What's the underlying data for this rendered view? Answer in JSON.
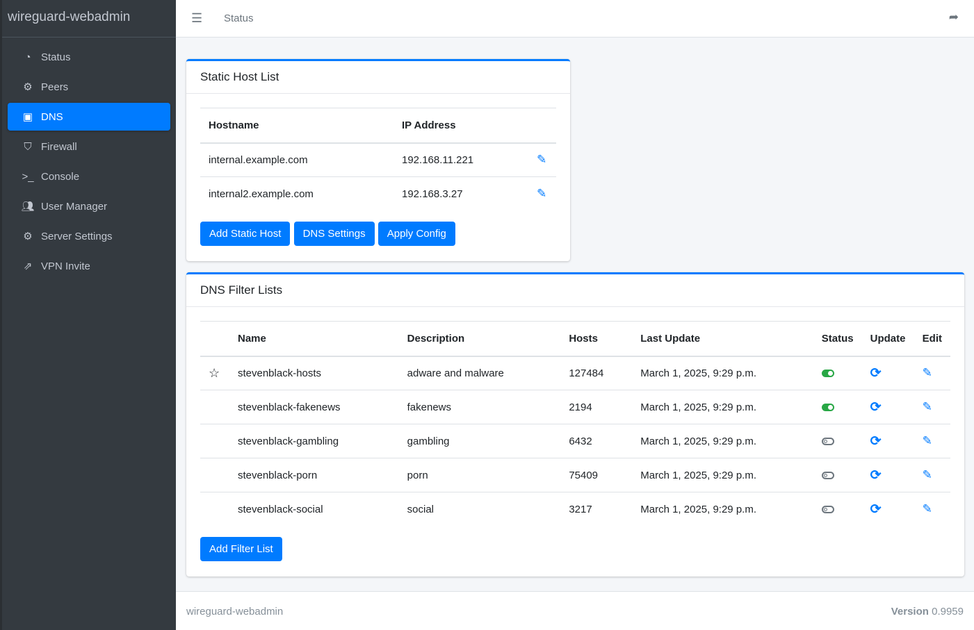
{
  "brand": "wireguard-webadmin",
  "sidebar": {
    "items": [
      {
        "label": "Status",
        "icon": "tachometer-icon"
      },
      {
        "label": "Peers",
        "icon": "users-cog-icon"
      },
      {
        "label": "DNS",
        "icon": "address-book-icon",
        "active": true
      },
      {
        "label": "Firewall",
        "icon": "shield-icon"
      },
      {
        "label": "Console",
        "icon": "terminal-icon"
      },
      {
        "label": "User Manager",
        "icon": "users-icon"
      },
      {
        "label": "Server Settings",
        "icon": "cogs-icon"
      },
      {
        "label": "VPN Invite",
        "icon": "share-icon"
      }
    ]
  },
  "header": {
    "title": "Status"
  },
  "static_hosts": {
    "title": "Static Host List",
    "columns": [
      "Hostname",
      "IP Address"
    ],
    "rows": [
      {
        "hostname": "internal.example.com",
        "ip": "192.168.11.221"
      },
      {
        "hostname": "internal2.example.com",
        "ip": "192.168.3.27"
      }
    ],
    "buttons": {
      "add": "Add Static Host",
      "settings": "DNS Settings",
      "apply": "Apply Config"
    }
  },
  "filter_lists": {
    "title": "DNS Filter Lists",
    "columns": [
      "Name",
      "Description",
      "Hosts",
      "Last Update",
      "Status",
      "Update",
      "Edit"
    ],
    "rows": [
      {
        "name": "stevenblack-hosts",
        "description": "adware and malware",
        "hosts": "127484",
        "last_update": "March 1, 2025, 9:29 p.m.",
        "enabled": true,
        "starred": true
      },
      {
        "name": "stevenblack-fakenews",
        "description": "fakenews",
        "hosts": "2194",
        "last_update": "March 1, 2025, 9:29 p.m.",
        "enabled": true
      },
      {
        "name": "stevenblack-gambling",
        "description": "gambling",
        "hosts": "6432",
        "last_update": "March 1, 2025, 9:29 p.m.",
        "enabled": false
      },
      {
        "name": "stevenblack-porn",
        "description": "porn",
        "hosts": "75409",
        "last_update": "March 1, 2025, 9:29 p.m.",
        "enabled": false
      },
      {
        "name": "stevenblack-social",
        "description": "social",
        "hosts": "3217",
        "last_update": "March 1, 2025, 9:29 p.m.",
        "enabled": false
      }
    ],
    "add_button": "Add Filter List"
  },
  "footer": {
    "left": "wireguard-webadmin",
    "version_label": "Version",
    "version": "0.9959"
  },
  "colors": {
    "accent": "#007bff",
    "sidebar": "#343a40",
    "enabled": "#28a745"
  }
}
